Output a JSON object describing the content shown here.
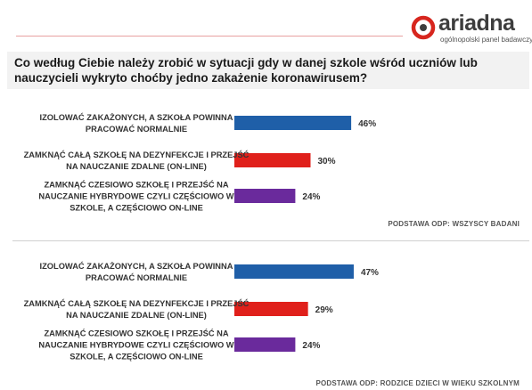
{
  "logo": {
    "name": "ariadna",
    "tagline": "ogólnopolski panel badawczy"
  },
  "question": "Co według Ciebie należy zrobić w sytuacji gdy w danej szkole wśród uczniów lub nauczycieli wykryto choćby jedno zakażenie koronawirusem?",
  "colors": {
    "blue": "#1f5fa8",
    "red": "#e0201b",
    "purple": "#6a2a9c"
  },
  "chart_data": [
    {
      "type": "bar",
      "orientation": "horizontal",
      "categories": [
        [
          "IZOLOWAĆ ZAKAŻONYCH, A SZKOŁA POWINNA",
          "PRACOWAĆ NORMALNIE"
        ],
        [
          "ZAMKNĄĆ CAŁĄ SZKOŁĘ NA DEZYNFEKCJE I PRZEJŚĆ",
          "NA NAUCZANIE ZDALNE (ON-LINE)"
        ],
        [
          "ZAMKNĄĆ CZESIOWO SZKOŁĘ I PRZEJŚĆ NA",
          "NAUCZANIE HYBRYDOWE CZYLI CZĘŚCIOWO W",
          "SZKOLE, A CZĘŚCIOWO ON-LINE"
        ]
      ],
      "values": [
        46,
        30,
        24
      ],
      "value_labels": [
        "46%",
        "30%",
        "24%"
      ],
      "bar_colors": [
        "#1f5fa8",
        "#e0201b",
        "#6a2a9c"
      ],
      "note": "PODSTAWA ODP: WSZYSCY BADANI"
    },
    {
      "type": "bar",
      "orientation": "horizontal",
      "categories": [
        [
          "IZOLOWAĆ ZAKAŻONYCH, A SZKOŁA POWINNA",
          "PRACOWAĆ NORMALNIE"
        ],
        [
          "ZAMKNĄĆ CAŁĄ SZKOŁĘ NA DEZYNFEKCJE I PRZEJŚĆ",
          "NA NAUCZANIE ZDALNE (ON-LINE)"
        ],
        [
          "ZAMKNĄĆ CZESIOWO SZKOŁĘ I PRZEJŚĆ NA",
          "NAUCZANIE HYBRYDOWE CZYLI CZĘŚCIOWO W",
          "SZKOLE, A CZĘŚCIOWO ON-LINE"
        ]
      ],
      "values": [
        47,
        29,
        24
      ],
      "value_labels": [
        "47%",
        "29%",
        "24%"
      ],
      "bar_colors": [
        "#1f5fa8",
        "#e0201b",
        "#6a2a9c"
      ],
      "note": "PODSTAWA ODP: RODZICE DZIECI W WIEKU SZKOLNYM"
    }
  ]
}
